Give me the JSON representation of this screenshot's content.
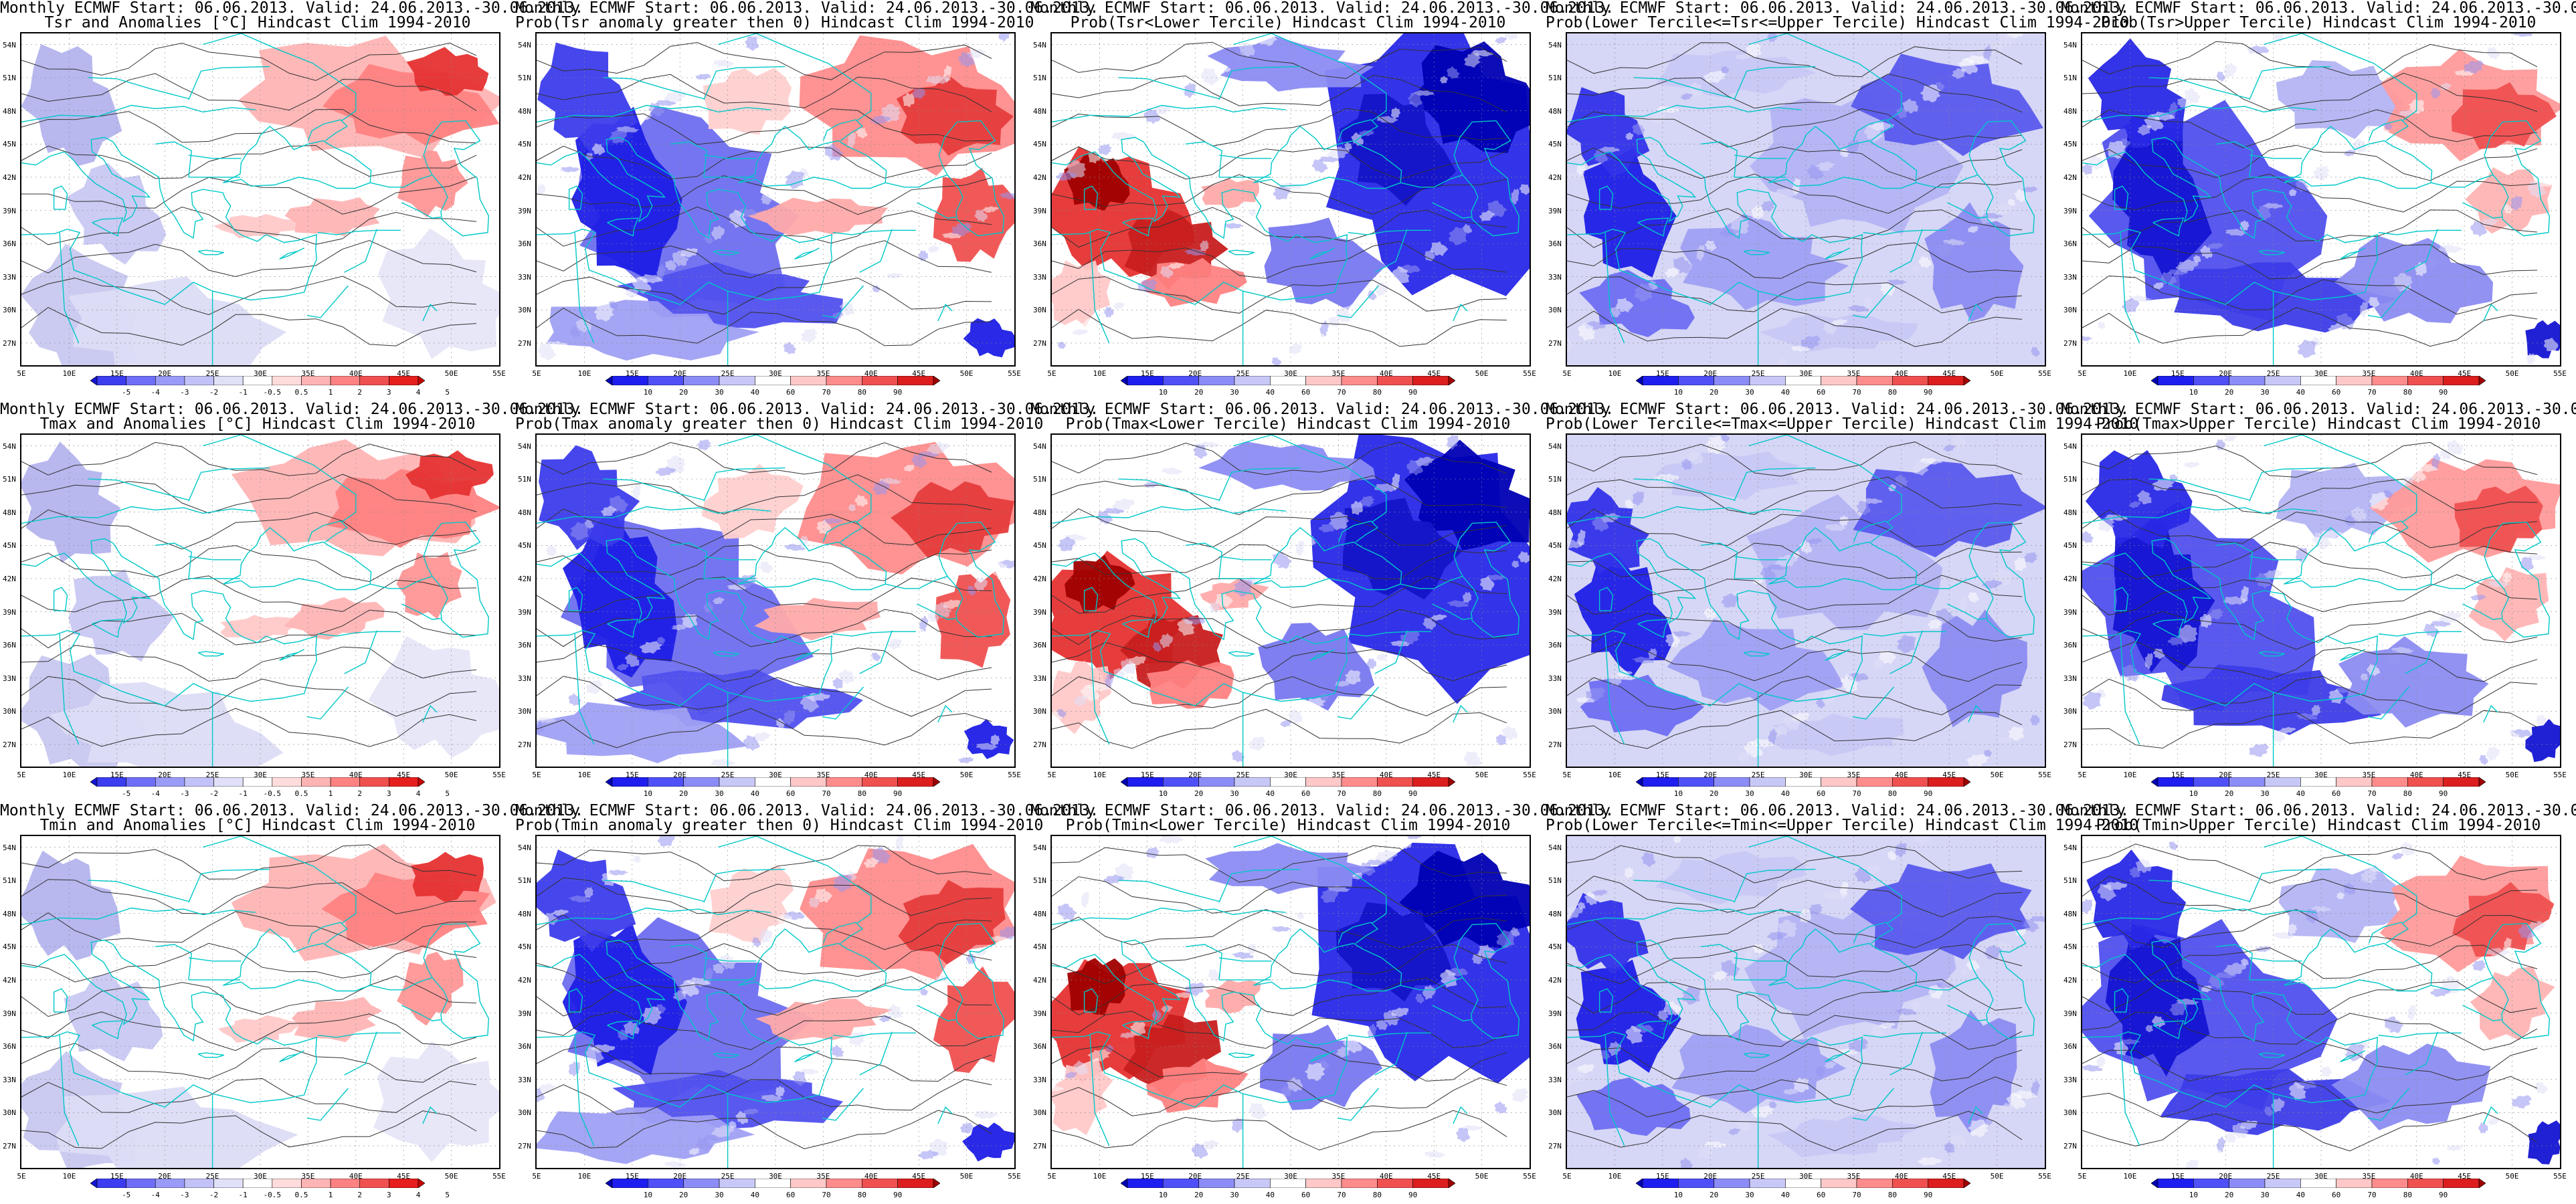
{
  "title_line1": "Monthly ECMWF Start: 06.06.2013. Valid: 24.06.2013.-30.06.2013.",
  "panels": [
    {
      "row": 0,
      "col": 0,
      "kind": "anom",
      "subtitle": "Tsr and Anomalies [°C] Hindcast Clim 1994-2010"
    },
    {
      "row": 0,
      "col": 1,
      "kind": "warm",
      "subtitle": "Prob(Tsr anomaly greater then 0) Hindcast Clim 1994-2010"
    },
    {
      "row": 0,
      "col": 2,
      "kind": "cold",
      "subtitle": "Prob(Tsr<Lower Tercile) Hindcast Clim 1994-2010"
    },
    {
      "row": 0,
      "col": 3,
      "kind": "mid",
      "subtitle": "Prob(Lower Tercile<=Tsr<=Upper Tercile) Hindcast Clim 1994-2010"
    },
    {
      "row": 0,
      "col": 4,
      "kind": "upper",
      "subtitle": "Prob(Tsr>Upper Tercile) Hindcast Clim 1994-2010"
    },
    {
      "row": 1,
      "col": 0,
      "kind": "anom",
      "subtitle": "Tmax and Anomalies [°C] Hindcast Clim 1994-2010"
    },
    {
      "row": 1,
      "col": 1,
      "kind": "warm",
      "subtitle": "Prob(Tmax anomaly greater then 0) Hindcast Clim 1994-2010"
    },
    {
      "row": 1,
      "col": 2,
      "kind": "cold",
      "subtitle": "Prob(Tmax<Lower Tercile) Hindcast Clim 1994-2010"
    },
    {
      "row": 1,
      "col": 3,
      "kind": "mid",
      "subtitle": "Prob(Lower Tercile<=Tmax<=Upper Tercile) Hindcast Clim 1994-2010"
    },
    {
      "row": 1,
      "col": 4,
      "kind": "upper",
      "subtitle": "Prob(Tmax>Upper Tercile) Hindcast Clim 1994-2010"
    },
    {
      "row": 2,
      "col": 0,
      "kind": "anom",
      "subtitle": "Tmin and Anomalies [°C] Hindcast Clim 1994-2010"
    },
    {
      "row": 2,
      "col": 1,
      "kind": "warm",
      "subtitle": "Prob(Tmin anomaly greater then 0) Hindcast Clim 1994-2010"
    },
    {
      "row": 2,
      "col": 2,
      "kind": "cold",
      "subtitle": "Prob(Tmin<Lower Tercile) Hindcast Clim 1994-2010"
    },
    {
      "row": 2,
      "col": 3,
      "kind": "mid",
      "subtitle": "Prob(Lower Tercile<=Tmin<=Upper Tercile) Hindcast Clim 1994-2010"
    },
    {
      "row": 2,
      "col": 4,
      "kind": "upper",
      "subtitle": "Prob(Tmin>Upper Tercile) Hindcast Clim 1994-2010"
    }
  ],
  "lat_labels": [
    "54N",
    "51N",
    "48N",
    "45N",
    "42N",
    "39N",
    "36N",
    "33N",
    "30N",
    "27N"
  ],
  "lon_labels": [
    "5E",
    "10E",
    "15E",
    "20E",
    "25E",
    "30E",
    "35E",
    "40E",
    "45E",
    "50E",
    "55E"
  ],
  "colorbars": {
    "anom": {
      "labels": [
        "-5",
        "-4",
        "-3",
        "-2",
        "-1",
        "-0.5",
        "0.5",
        "1",
        "2",
        "3",
        "4",
        "5"
      ],
      "colors": [
        "#1414d2",
        "#3c3cf0",
        "#6e6ef8",
        "#9a9af8",
        "#c2c2f8",
        "#e0e0f8",
        "#ffffff",
        "#ffdcdc",
        "#ffb4b4",
        "#ff8282",
        "#f05050",
        "#e61e1e",
        "#c80000"
      ]
    },
    "prob": {
      "labels": [
        "10",
        "20",
        "30",
        "40",
        "60",
        "70",
        "80",
        "90"
      ],
      "colors": [
        "#0000b4",
        "#1e1ef0",
        "#5050f8",
        "#8c8cf8",
        "#c8c8f8",
        "#ffffff",
        "#ffc8c8",
        "#ff8c8c",
        "#f05050",
        "#dc1e1e",
        "#a00000"
      ]
    }
  }
}
